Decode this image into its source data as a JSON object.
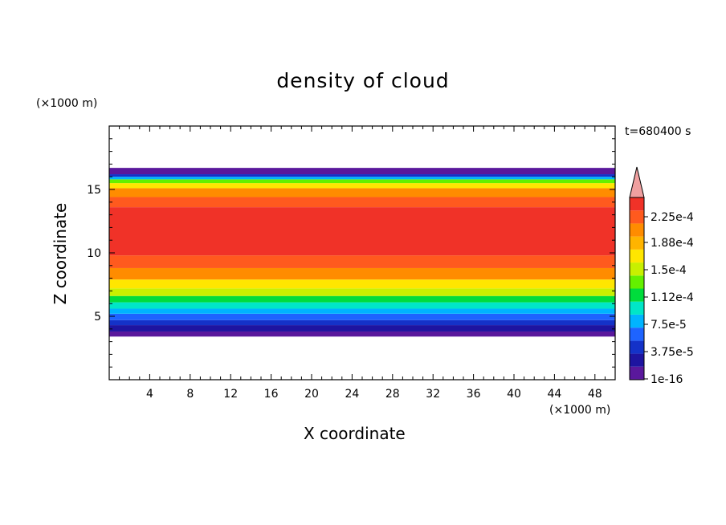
{
  "chart_data": {
    "type": "heatmap",
    "title": "density of cloud",
    "xlabel": "X coordinate",
    "ylabel": "Z coordinate",
    "x_unit": "(×1000 m)",
    "y_unit": "(×1000 m)",
    "time_label": "t=680400 s",
    "xlim": [
      0,
      50
    ],
    "ylim": [
      0,
      20
    ],
    "x_ticks": [
      4,
      8,
      12,
      16,
      20,
      24,
      28,
      32,
      36,
      40,
      44,
      48
    ],
    "y_ticks": [
      5,
      10,
      15
    ],
    "colorbar": {
      "labels": [
        "2.25e-4",
        "1.88e-4",
        "1.5e-4",
        "1.12e-4",
        "7.5e-5",
        "3.75e-5",
        "1e-16"
      ],
      "label_values": [
        0.000225,
        0.000188,
        0.00015,
        0.000112,
        7.5e-05,
        3.75e-05,
        1e-16
      ],
      "colors": [
        "#5a189c",
        "#1e14a0",
        "#1432c8",
        "#1e64ff",
        "#00b4ff",
        "#00e6c8",
        "#00dc3c",
        "#64f000",
        "#c8f000",
        "#ffe600",
        "#ffb400",
        "#ff8c00",
        "#ff5a1e",
        "#f03228"
      ],
      "overflow_color": "#f0a0a0",
      "extend": "max"
    },
    "field": {
      "z_bottom": 3.4,
      "z_top": 16.7,
      "description_bands": [
        {
          "z_from": 3.4,
          "z_to": 3.8,
          "level": 0
        },
        {
          "z_from": 3.8,
          "z_to": 4.3,
          "level": 1
        },
        {
          "z_from": 4.3,
          "z_to": 4.7,
          "level": 2
        },
        {
          "z_from": 4.7,
          "z_to": 5.2,
          "level": 3
        },
        {
          "z_from": 5.2,
          "z_to": 5.6,
          "level": 4
        },
        {
          "z_from": 5.6,
          "z_to": 6.1,
          "level": 5
        },
        {
          "z_from": 6.1,
          "z_to": 6.6,
          "level": 6
        },
        {
          "z_from": 6.6,
          "z_to": 7.2,
          "level": 8
        },
        {
          "z_from": 7.2,
          "z_to": 7.9,
          "level": 9
        },
        {
          "z_from": 7.9,
          "z_to": 8.8,
          "level": 11
        },
        {
          "z_from": 8.8,
          "z_to": 9.8,
          "level": 12
        },
        {
          "z_from": 9.8,
          "z_to": 13.6,
          "level": 13
        },
        {
          "z_from": 13.6,
          "z_to": 14.4,
          "level": 12
        },
        {
          "z_from": 14.4,
          "z_to": 15.1,
          "level": 11
        },
        {
          "z_from": 15.1,
          "z_to": 15.5,
          "level": 9
        },
        {
          "z_from": 15.5,
          "z_to": 15.8,
          "level": 7
        },
        {
          "z_from": 15.8,
          "z_to": 16.0,
          "level": 4
        },
        {
          "z_from": 16.0,
          "z_to": 16.2,
          "level": 2
        },
        {
          "z_from": 16.2,
          "z_to": 16.7,
          "level": 0
        }
      ]
    }
  }
}
